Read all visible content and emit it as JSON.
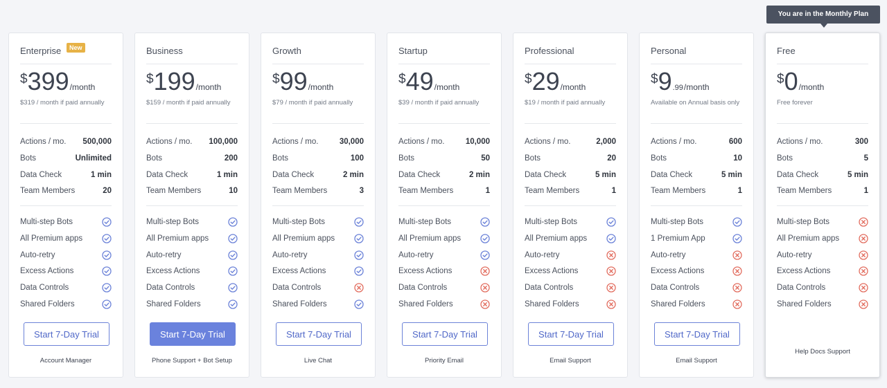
{
  "tooltip": "You are in the Monthly Plan",
  "labels": {
    "actions": "Actions / mo.",
    "bots": "Bots",
    "data_check": "Data Check",
    "team": "Team Members",
    "cur": "$",
    "per": "/month"
  },
  "colors": {
    "check": "#6b82d8",
    "cross": "#e26d5f",
    "primary": "#6a82dd"
  },
  "plans": [
    {
      "name": "Enterprise",
      "badge": "New",
      "amount": "399",
      "decimal": "",
      "sub": "$319 / month if paid annually",
      "actions": "500,000",
      "bots": "Unlimited",
      "data_check": "1 min",
      "team": "20",
      "features": [
        {
          "label": "Multi-step Bots",
          "icon": "check"
        },
        {
          "label": "All Premium apps",
          "icon": "check"
        },
        {
          "label": "Auto-retry",
          "icon": "check"
        },
        {
          "label": "Excess Actions",
          "icon": "check"
        },
        {
          "label": "Data Controls",
          "icon": "check"
        },
        {
          "label": "Shared Folders",
          "icon": "check"
        }
      ],
      "button": "Start 7-Day Trial",
      "primary": false,
      "support": "Account Manager"
    },
    {
      "name": "Business",
      "badge": "",
      "amount": "199",
      "decimal": "",
      "sub": "$159 / month if paid annually",
      "actions": "100,000",
      "bots": "200",
      "data_check": "1 min",
      "team": "10",
      "features": [
        {
          "label": "Multi-step Bots",
          "icon": "check"
        },
        {
          "label": "All Premium apps",
          "icon": "check"
        },
        {
          "label": "Auto-retry",
          "icon": "check"
        },
        {
          "label": "Excess Actions",
          "icon": "check"
        },
        {
          "label": "Data Controls",
          "icon": "check"
        },
        {
          "label": "Shared Folders",
          "icon": "check"
        }
      ],
      "button": "Start 7-Day Trial",
      "primary": true,
      "support": "Phone Support + Bot Setup"
    },
    {
      "name": "Growth",
      "badge": "",
      "amount": "99",
      "decimal": "",
      "sub": "$79 / month if paid annually",
      "actions": "30,000",
      "bots": "100",
      "data_check": "2 min",
      "team": "3",
      "features": [
        {
          "label": "Multi-step Bots",
          "icon": "check"
        },
        {
          "label": "All Premium apps",
          "icon": "check"
        },
        {
          "label": "Auto-retry",
          "icon": "check"
        },
        {
          "label": "Excess Actions",
          "icon": "check"
        },
        {
          "label": "Data Controls",
          "icon": "cross"
        },
        {
          "label": "Shared Folders",
          "icon": "check"
        }
      ],
      "button": "Start 7-Day Trial",
      "primary": false,
      "support": "Live Chat"
    },
    {
      "name": "Startup",
      "badge": "",
      "amount": "49",
      "decimal": "",
      "sub": "$39 / month if paid annually",
      "actions": "10,000",
      "bots": "50",
      "data_check": "2 min",
      "team": "1",
      "features": [
        {
          "label": "Multi-step Bots",
          "icon": "check"
        },
        {
          "label": "All Premium apps",
          "icon": "check"
        },
        {
          "label": "Auto-retry",
          "icon": "check"
        },
        {
          "label": "Excess Actions",
          "icon": "cross"
        },
        {
          "label": "Data Controls",
          "icon": "cross"
        },
        {
          "label": "Shared Folders",
          "icon": "cross"
        }
      ],
      "button": "Start 7-Day Trial",
      "primary": false,
      "support": "Priority Email"
    },
    {
      "name": "Professional",
      "badge": "",
      "amount": "29",
      "decimal": "",
      "sub": "$19 / month if paid annually",
      "actions": "2,000",
      "bots": "20",
      "data_check": "5 min",
      "team": "1",
      "features": [
        {
          "label": "Multi-step Bots",
          "icon": "check"
        },
        {
          "label": "All Premium apps",
          "icon": "check"
        },
        {
          "label": "Auto-retry",
          "icon": "cross"
        },
        {
          "label": "Excess Actions",
          "icon": "cross"
        },
        {
          "label": "Data Controls",
          "icon": "cross"
        },
        {
          "label": "Shared Folders",
          "icon": "cross"
        }
      ],
      "button": "Start 7-Day Trial",
      "primary": false,
      "support": "Email Support"
    },
    {
      "name": "Personal",
      "badge": "",
      "amount": "9",
      "decimal": ".99",
      "sub": "Available on Annual basis only",
      "actions": "600",
      "bots": "10",
      "data_check": "5 min",
      "team": "1",
      "features": [
        {
          "label": "Multi-step Bots",
          "icon": "check"
        },
        {
          "label": "1 Premium App",
          "icon": "check"
        },
        {
          "label": "Auto-retry",
          "icon": "cross"
        },
        {
          "label": "Excess Actions",
          "icon": "cross"
        },
        {
          "label": "Data Controls",
          "icon": "cross"
        },
        {
          "label": "Shared Folders",
          "icon": "cross"
        }
      ],
      "button": "Start 7-Day Trial",
      "primary": false,
      "support": "Email Support"
    },
    {
      "name": "Free",
      "badge": "",
      "amount": "0",
      "decimal": "",
      "sub": "Free forever",
      "actions": "300",
      "bots": "5",
      "data_check": "5 min",
      "team": "1",
      "features": [
        {
          "label": "Multi-step Bots",
          "icon": "cross"
        },
        {
          "label": "All Premium apps",
          "icon": "cross"
        },
        {
          "label": "Auto-retry",
          "icon": "cross"
        },
        {
          "label": "Excess Actions",
          "icon": "cross"
        },
        {
          "label": "Data Controls",
          "icon": "cross"
        },
        {
          "label": "Shared Folders",
          "icon": "cross"
        }
      ],
      "button": "",
      "primary": false,
      "support": "Help Docs Support",
      "current": true
    }
  ]
}
